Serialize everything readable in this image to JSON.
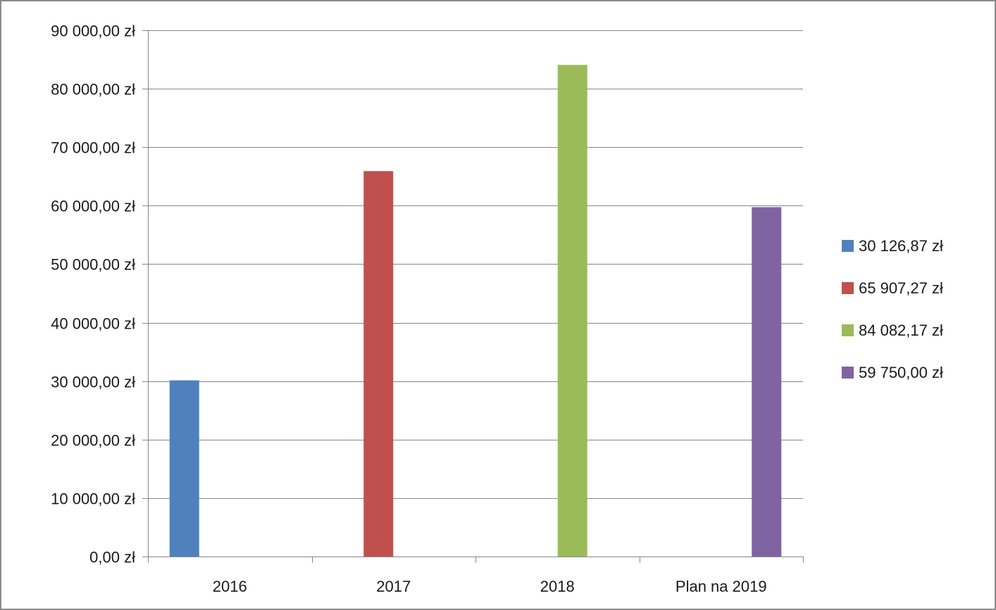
{
  "chart_data": {
    "type": "bar",
    "title": "",
    "xlabel": "",
    "ylabel": "",
    "categories": [
      "2016",
      "2017",
      "2018",
      "Plan na 2019"
    ],
    "series": [
      {
        "name": "30 126,87 zł",
        "category": "2016",
        "value": 30126.87,
        "color": "#4f81bd"
      },
      {
        "name": "65 907,27 zł",
        "category": "2017",
        "value": 65907.27,
        "color": "#c0504d"
      },
      {
        "name": "84 082,17 zł",
        "category": "2018",
        "value": 84082.17,
        "color": "#9bbb59"
      },
      {
        "name": "59 750,00 zł",
        "category": "Plan na 2019",
        "value": 59750.0,
        "color": "#8064a2"
      }
    ],
    "ylim": [
      0,
      90000
    ],
    "yticks": [
      0,
      10000,
      20000,
      30000,
      40000,
      50000,
      60000,
      70000,
      80000,
      90000
    ],
    "ytick_labels": [
      "0,00 zł",
      "10 000,00 zł",
      "20 000,00 zł",
      "30 000,00 zł",
      "40 000,00 zł",
      "50 000,00 zł",
      "60 000,00 zł",
      "70 000,00 zł",
      "80 000,00 zł",
      "90 000,00 zł"
    ],
    "grid": true,
    "legend_position": "right",
    "gridline_color": "#868686",
    "axis_color": "#868686"
  }
}
